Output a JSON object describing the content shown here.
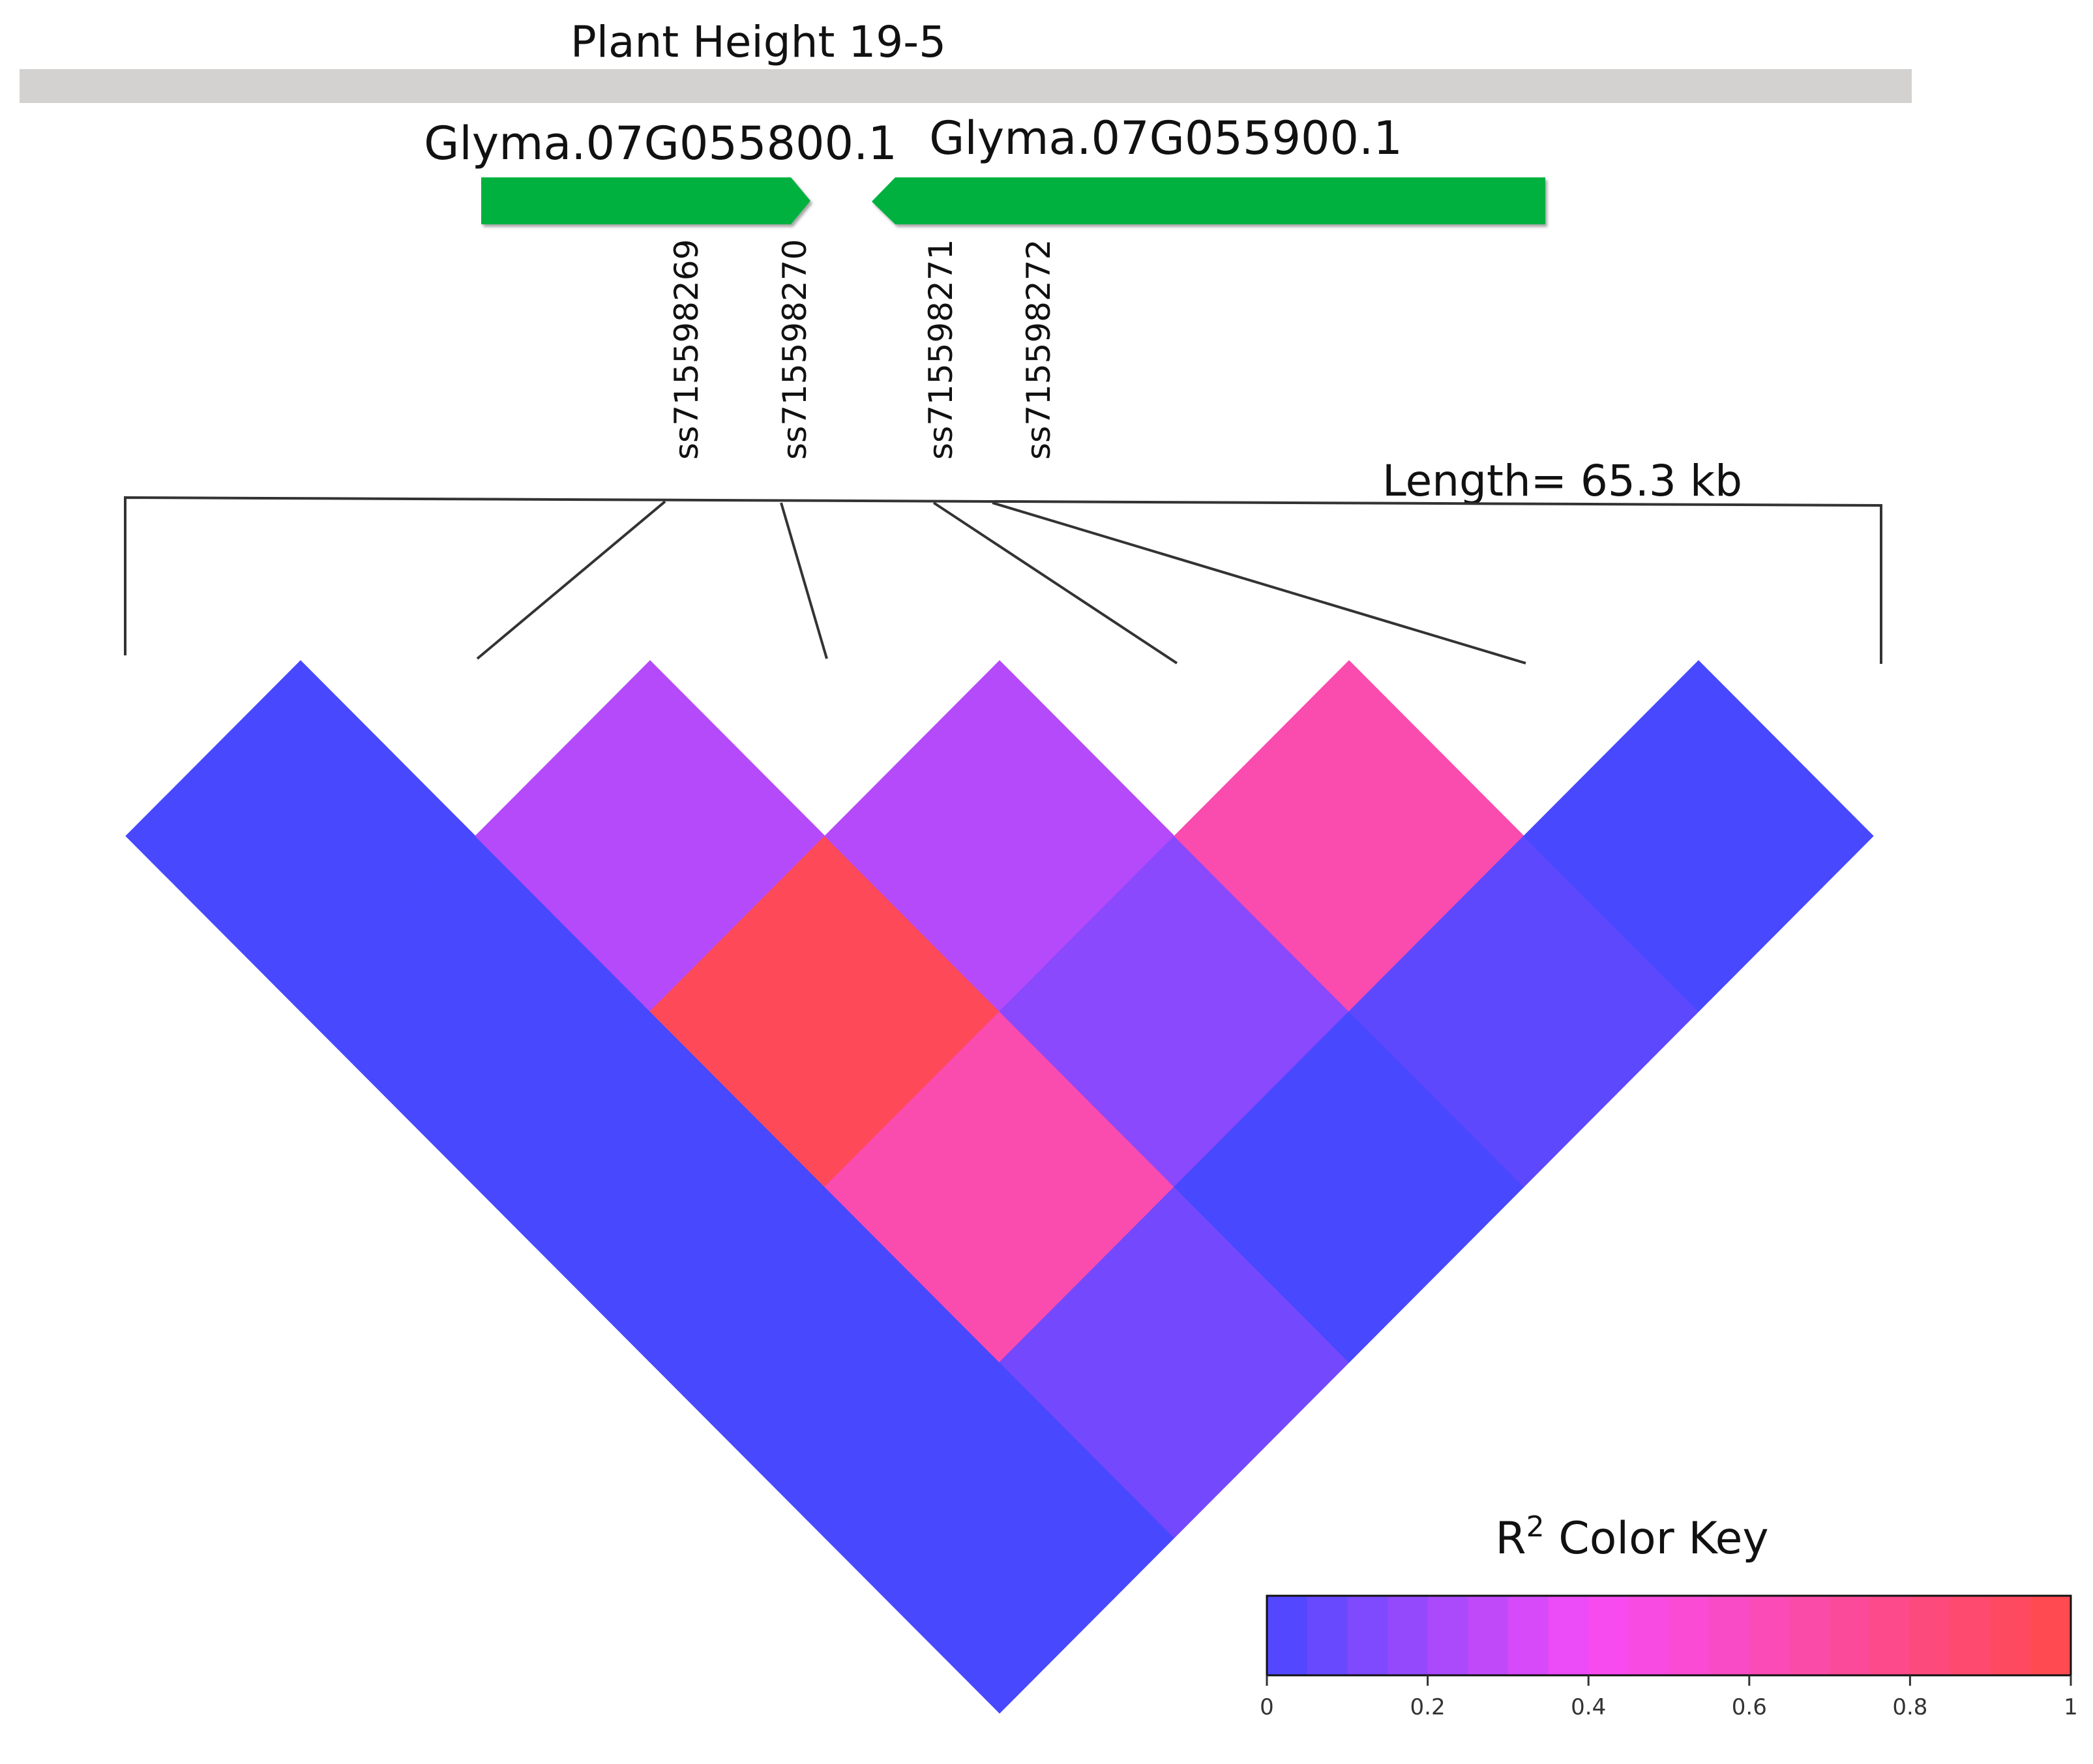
{
  "title": "Plant Height 19-5",
  "genes": [
    {
      "name": "Glyma.07G055800.1",
      "strand": "+"
    },
    {
      "name": "Glyma.07G055900.1",
      "strand": "-"
    }
  ],
  "gene_color": "#00b140",
  "region_bar_color": "#d4d1d1",
  "length_label": "Length= 65.3 kb",
  "color_key": {
    "title_main": "R",
    "title_sup": "2",
    "title_rest": " Color Key",
    "ticks": [
      "0",
      "0.2",
      "0.4",
      "0.6",
      "0.8",
      "1"
    ],
    "stops": [
      {
        "value": 0.0,
        "color": "#4848ff"
      },
      {
        "value": 0.4,
        "color": "#f74bf7"
      },
      {
        "value": 1.0,
        "color": "#ff4a4a"
      }
    ],
    "bands": 20
  },
  "chart_data": {
    "type": "heatmap",
    "title": "Plant Height 19-5",
    "markers": [
      "",
      "ss715598269",
      "ss715598270",
      "ss715598271",
      "ss715598272",
      ""
    ],
    "r2_matrix": [
      [
        0.0,
        0.0,
        0.0,
        0.0,
        0.0
      ],
      [
        null,
        0.25,
        0.95,
        0.65,
        0.1
      ],
      [
        null,
        null,
        0.25,
        0.15,
        0.0
      ],
      [
        null,
        null,
        null,
        0.65,
        0.05
      ],
      [
        null,
        null,
        null,
        null,
        0.0
      ]
    ],
    "color_scale": {
      "min": 0,
      "max": 1,
      "label": "R2 Color Key"
    },
    "length": "65.3 kb"
  }
}
